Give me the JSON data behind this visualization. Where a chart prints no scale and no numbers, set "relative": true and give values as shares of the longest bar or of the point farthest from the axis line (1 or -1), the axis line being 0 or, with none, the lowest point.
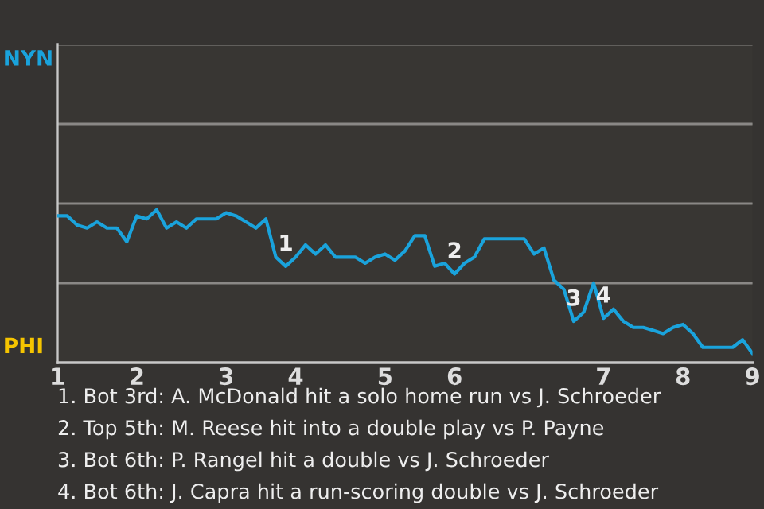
{
  "chart_data": {
    "type": "line",
    "relative": true,
    "categories": [
      "1",
      null,
      null,
      null,
      null,
      null,
      null,
      null,
      "2",
      null,
      null,
      null,
      null,
      null,
      null,
      null,
      null,
      "3",
      null,
      null,
      null,
      null,
      null,
      null,
      "4",
      null,
      null,
      null,
      null,
      null,
      null,
      null,
      null,
      "5",
      null,
      null,
      null,
      null,
      null,
      null,
      "6",
      null,
      null,
      null,
      null,
      null,
      null,
      null,
      null,
      null,
      null,
      null,
      null,
      null,
      null,
      "7",
      null,
      null,
      null,
      null,
      null,
      null,
      null,
      "8",
      null,
      null,
      null,
      null,
      null,
      null,
      "9"
    ],
    "series": [
      {
        "color": "#1aa3dc",
        "values": [
          0.96,
          0.96,
          0.9,
          0.88,
          0.92,
          0.88,
          0.88,
          0.79,
          0.96,
          0.94,
          1,
          0.88,
          0.92,
          0.88,
          0.94,
          0.94,
          0.94,
          0.98,
          0.96,
          0.92,
          0.88,
          0.94,
          0.69,
          0.63,
          0.69,
          0.77,
          0.71,
          0.77,
          0.69,
          0.69,
          0.69,
          0.65,
          0.69,
          0.71,
          0.67,
          0.73,
          0.83,
          0.83,
          0.63,
          0.65,
          0.58,
          0.65,
          0.69,
          0.81,
          0.81,
          0.81,
          0.81,
          0.81,
          0.71,
          0.75,
          0.54,
          0.48,
          0.27,
          0.33,
          0.52,
          0.29,
          0.35,
          0.27,
          0.23,
          0.23,
          0.21,
          0.19,
          0.23,
          0.25,
          0.19,
          0.1,
          0.1,
          0.1,
          0.1,
          0.15,
          0.06
        ]
      }
    ],
    "ref_lines": [
      {
        "axis": "y",
        "value": 0.52,
        "color": "#8a8886"
      },
      {
        "axis": "y",
        "value": 1.04,
        "color": "#8a8886"
      },
      {
        "axis": "y",
        "value": 1.56,
        "color": "#8a8886"
      },
      {
        "axis": "y",
        "value": 2.08,
        "color": "#8a8886"
      }
    ],
    "annotations": [
      "NYN",
      "PHI",
      {
        "text": "1",
        "y": 0.63
      },
      {
        "text": "2",
        "y": 0.58
      },
      {
        "text": "3",
        "y": 0.27
      },
      {
        "text": "4",
        "y": 0.29
      },
      "1. Bot 3rd: A. McDonald hit a solo home run vs J. Schroeder",
      "2. Top 5th: M. Reese hit into a double play vs P. Payne",
      "3. Bot 6th: P. Rangel hit a double vs J. Schroeder",
      "4. Bot 6th: J. Capra hit a run-scoring double vs J. Schroeder"
    ]
  }
}
